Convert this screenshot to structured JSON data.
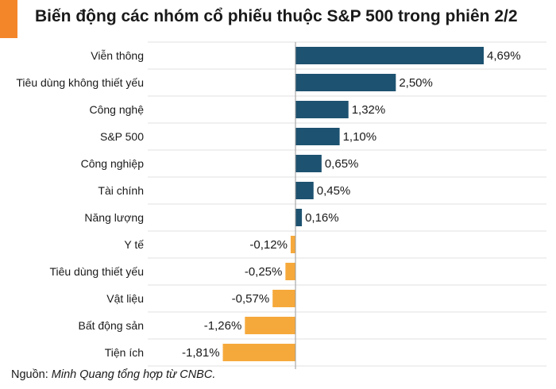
{
  "title": "Biến động các nhóm cổ phiếu thuộc S&P 500 trong phiên 2/2",
  "source": {
    "prefix": "Nguồn: ",
    "text": "Minh Quang tổng hợp từ CNBC."
  },
  "colors": {
    "accent": "#f4862a",
    "positive": "#1d5270",
    "negative": "#f6a93b",
    "grid": "#e2e2e2",
    "axis": "#9a9a9a"
  },
  "chart_data": {
    "type": "bar",
    "orientation": "horizontal",
    "categories": [
      "Viễn thông",
      "Tiêu dùng không thiết yếu",
      "Công nghệ",
      "S&P 500",
      "Công nghiệp",
      "Tài chính",
      "Năng lượng",
      "Y tế",
      "Tiêu dùng thiết yếu",
      "Vật liệu",
      "Bất động sản",
      "Tiện ích"
    ],
    "values": [
      4.69,
      2.5,
      1.32,
      1.1,
      0.65,
      0.45,
      0.16,
      -0.12,
      -0.25,
      -0.57,
      -1.26,
      -1.81
    ],
    "labels": [
      "4,69%",
      "2,50%",
      "1,32%",
      "1,10%",
      "0,65%",
      "0,45%",
      "0,16%",
      "-0,12%",
      "-0,25%",
      "-0,57%",
      "-1,26%",
      "-1,81%"
    ],
    "xlim": [
      -1.81,
      4.69
    ],
    "grid": true,
    "legend": "none"
  }
}
